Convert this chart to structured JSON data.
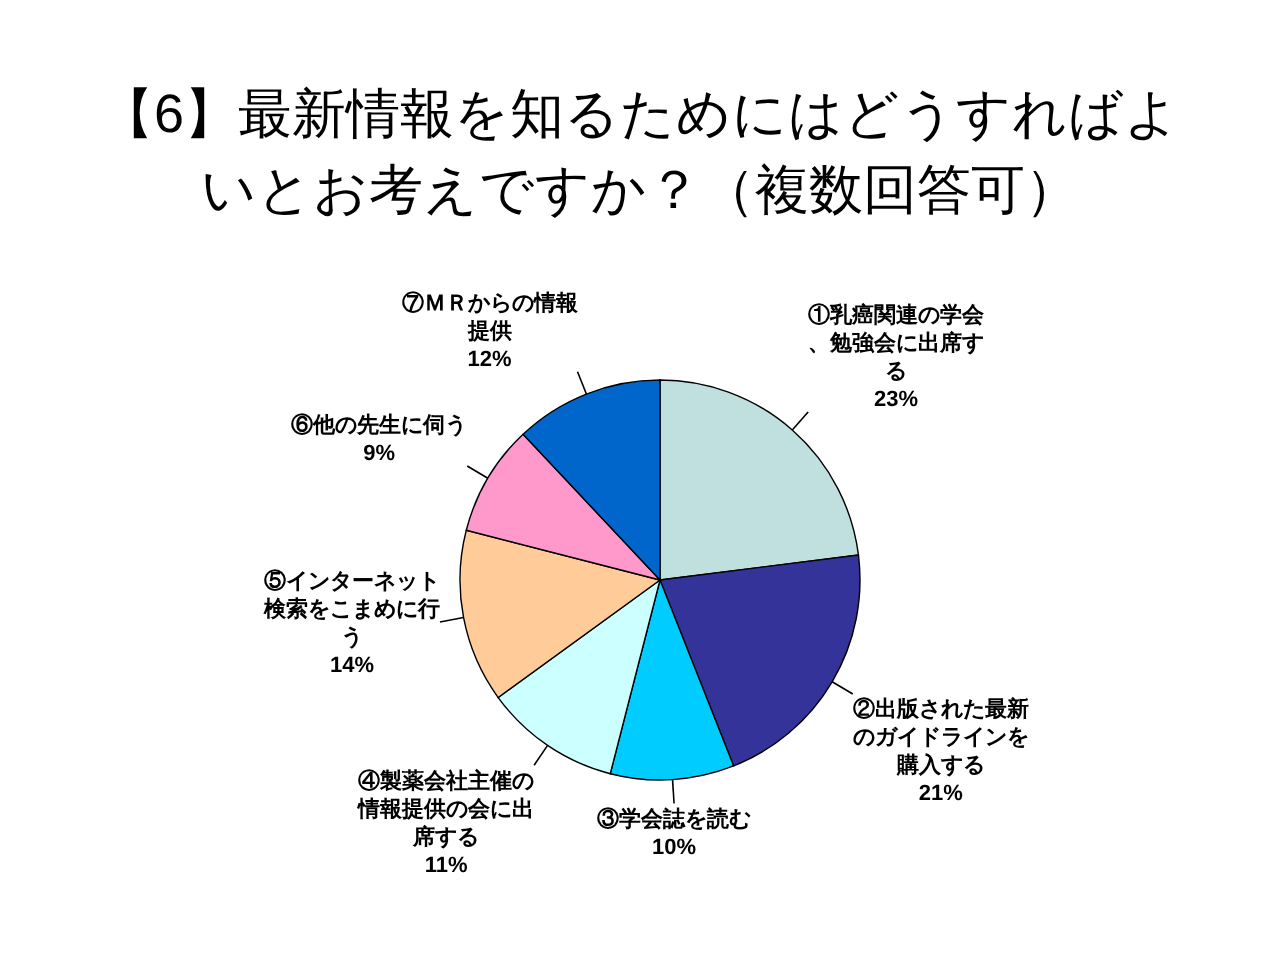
{
  "chart_data": {
    "type": "pie",
    "title": "【6】最新情報を知るためにはどうすればよいとお考えですか？（複数回答可）",
    "categories": [
      "①乳癌関連の学会、勉強会に出席する",
      "②出版された最新のガイドラインを購入する",
      "③学会誌を読む",
      "④製薬会社主催の情報提供の会に出席する",
      "⑤インターネット検索をこまめに行う",
      "⑥他の先生に伺う",
      "⑦ＭＲからの情報提供"
    ],
    "values": [
      23,
      21,
      10,
      11,
      14,
      9,
      12
    ],
    "colors": [
      "#c0e0e0",
      "#333399",
      "#00ccff",
      "#ccffff",
      "#ffcc99",
      "#ff99cc",
      "#0066cc"
    ],
    "value_labels": [
      "23%",
      "21%",
      "10%",
      "11%",
      "14%",
      "9%",
      "12%"
    ]
  }
}
